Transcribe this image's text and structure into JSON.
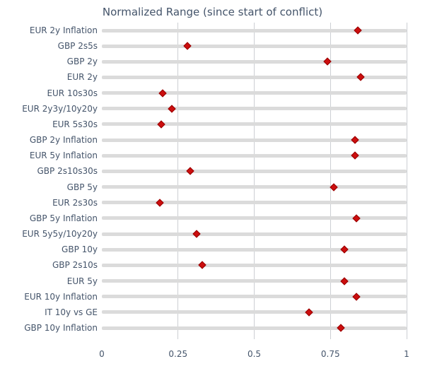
{
  "chart_data": {
    "type": "scatter",
    "title": "Normalized Range (since start of conflict)",
    "xlabel": "",
    "ylabel": "",
    "xlim": [
      0,
      1
    ],
    "x_ticks": [
      0,
      0.25,
      0.5,
      0.75,
      1
    ],
    "x_tick_labels": [
      "0",
      "0.25",
      "0.5",
      "0.75",
      "1"
    ],
    "grid": true,
    "legend_position": "none",
    "marker": "diamond",
    "categories": [
      "EUR 2y Inflation",
      "GBP 2s5s",
      "GBP 2y",
      "EUR 2y",
      "EUR 10s30s",
      "EUR 2y3y/10y20y",
      "EUR 5s30s",
      "GBP 2y Inflation",
      "EUR 5y Inflation",
      "GBP 2s10s30s",
      "GBP 5y",
      "EUR 2s30s",
      "GBP 5y Inflation",
      "EUR 5y5y/10y20y",
      "GBP 10y",
      "GBP 2s10s",
      "EUR 5y",
      "EUR 10y Inflation",
      "IT 10y vs GE",
      "GBP 10y Inflation"
    ],
    "values": [
      0.84,
      0.28,
      0.74,
      0.85,
      0.2,
      0.23,
      0.195,
      0.83,
      0.83,
      0.29,
      0.76,
      0.19,
      0.835,
      0.31,
      0.795,
      0.33,
      0.795,
      0.835,
      0.68,
      0.785
    ],
    "colors": {
      "marker_fill": "#CC0E0E",
      "marker_border": "#960000",
      "range_bar": "#DBDBDB",
      "gridline": "#CCCFD3",
      "text": "#44546A",
      "background": "#FFFFFF"
    }
  }
}
